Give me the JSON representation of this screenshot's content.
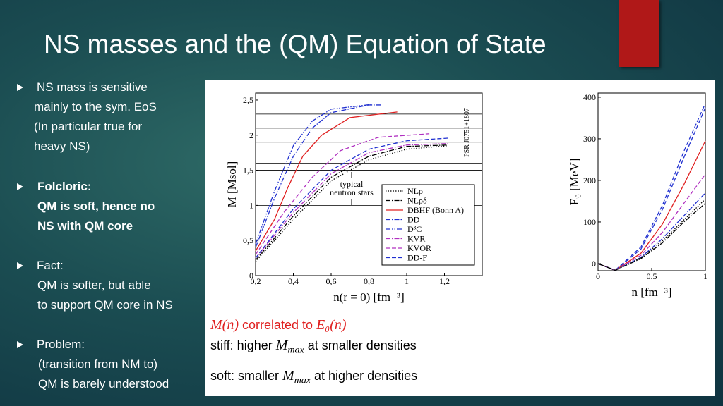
{
  "slide": {
    "title": "NS masses and the (QM) Equation of State",
    "bullets": [
      {
        "lines": [
          "NS mass is sensitive",
          "mainly to the sym. EoS",
          "(In particular true for",
          "heavy NS)"
        ]
      },
      {
        "lines": [
          "Folcloric:",
          "QM is soft, hence no",
          "NS with QM core"
        ]
      },
      {
        "lines": [
          "Fact:",
          [
            "QM is soft",
            "er",
            ", but able"
          ],
          "to support QM core in NS"
        ]
      },
      {
        "lines": [
          "Problem:",
          "(transition from NM to)",
          "QM is barely understood"
        ]
      }
    ],
    "footer": [
      {
        "math": "M(n)",
        "text": " correlated to ",
        "math2": "E₀(n)"
      },
      {
        "before": "stiff: higher ",
        "math": "M",
        "sub": "max",
        "after": " at smaller densities"
      },
      {
        "before": "soft: smaller ",
        "math": "M",
        "sub": "max",
        "after": " at higher densities"
      }
    ]
  },
  "chart_data": [
    {
      "type": "line",
      "x_label": "n(r = 0)  [fm⁻³]",
      "y_label": "M  [Msol]",
      "xlim": [
        0.2,
        1.4
      ],
      "ylim": [
        0,
        2.6
      ],
      "xticks": [
        {
          "value": 0.2,
          "label": "0,2"
        },
        {
          "value": 0.4,
          "label": "0,4"
        },
        {
          "value": 0.6,
          "label": "0,6"
        },
        {
          "value": 0.8,
          "label": "0,8"
        },
        {
          "value": 1,
          "label": "1"
        },
        {
          "value": 1.2,
          "label": "1,2"
        }
      ],
      "yticks": [
        0,
        {
          "value": 0.5,
          "label": "0,5"
        },
        1,
        {
          "value": 1.5,
          "label": "1,5"
        },
        2,
        {
          "value": 2.5,
          "label": "2,5"
        }
      ],
      "reference_lines": [
        1,
        1.5,
        1.6,
        1.9,
        2.1,
        2.3
      ],
      "annotations": [
        "typical",
        "neutron stars",
        "PSR J0751+1807"
      ],
      "legend": "lower right",
      "series": [
        {
          "name": "NLρ",
          "color": "#000000",
          "style": "dotted",
          "x": [
            0.2,
            0.4,
            0.6,
            0.8,
            1.0,
            1.22
          ],
          "values": [
            0.2,
            0.8,
            1.35,
            1.65,
            1.8,
            1.85
          ]
        },
        {
          "name": "NLρδ",
          "color": "#000000",
          "style": "dashdot",
          "x": [
            0.2,
            0.4,
            0.6,
            0.8,
            1.0,
            1.22
          ],
          "values": [
            0.22,
            0.85,
            1.4,
            1.7,
            1.84,
            1.86
          ]
        },
        {
          "name": "DBHF (Bonn A)",
          "color": "#e02020",
          "style": "solid",
          "x": [
            0.2,
            0.3,
            0.37,
            0.45,
            0.55,
            0.7,
            0.95
          ],
          "values": [
            0.35,
            0.8,
            1.25,
            1.7,
            2.0,
            2.25,
            2.33
          ]
        },
        {
          "name": "DD",
          "color": "#2030d0",
          "style": "dashdot",
          "x": [
            0.2,
            0.3,
            0.4,
            0.5,
            0.6,
            0.8,
            0.87
          ],
          "values": [
            0.4,
            1.1,
            1.7,
            2.1,
            2.32,
            2.43,
            2.43
          ]
        },
        {
          "name": "D³C",
          "color": "#2030d0",
          "style": "dashdotdot",
          "x": [
            0.2,
            0.3,
            0.4,
            0.5,
            0.6,
            0.82
          ],
          "values": [
            0.45,
            1.2,
            1.85,
            2.2,
            2.37,
            2.44
          ]
        },
        {
          "name": "KVR",
          "color": "#b030c0",
          "style": "dashdot",
          "x": [
            0.2,
            0.4,
            0.6,
            0.8,
            1.0,
            1.22
          ],
          "values": [
            0.25,
            0.9,
            1.45,
            1.75,
            1.86,
            1.88
          ]
        },
        {
          "name": "KVOR",
          "color": "#b030c0",
          "style": "dashed",
          "x": [
            0.2,
            0.35,
            0.5,
            0.65,
            0.85,
            1.12
          ],
          "values": [
            0.3,
            0.9,
            1.4,
            1.78,
            1.97,
            2.02
          ]
        },
        {
          "name": "DD-F",
          "color": "#2030d0",
          "style": "dashed",
          "x": [
            0.2,
            0.4,
            0.6,
            0.8,
            1.0,
            1.23
          ],
          "values": [
            0.25,
            0.95,
            1.5,
            1.8,
            1.92,
            1.96
          ]
        }
      ]
    },
    {
      "type": "line",
      "x_label": "n  [fm⁻³]",
      "y_label": "E₀  [MeV]",
      "xlim": [
        0,
        1
      ],
      "ylim": [
        -17,
        410
      ],
      "xticks": [
        0,
        0.5,
        1
      ],
      "yticks": [
        0,
        100,
        200,
        300,
        400
      ],
      "series": [
        {
          "color": "#2030d0",
          "style": "dashed",
          "x": [
            0,
            0.16,
            0.4,
            0.6,
            0.8,
            1.0
          ],
          "values": [
            0,
            -16,
            40,
            140,
            270,
            385
          ]
        },
        {
          "color": "#2030d0",
          "style": "dashed",
          "x": [
            0,
            0.16,
            0.4,
            0.6,
            0.8,
            1.0
          ],
          "values": [
            0,
            -16,
            35,
            130,
            255,
            375
          ]
        },
        {
          "color": "#e02020",
          "style": "solid",
          "x": [
            0,
            0.16,
            0.4,
            0.6,
            0.8,
            1.0
          ],
          "values": [
            0,
            -16,
            25,
            95,
            190,
            295
          ]
        },
        {
          "color": "#b030c0",
          "style": "dashed",
          "x": [
            0,
            0.16,
            0.4,
            0.6,
            0.8,
            1.0
          ],
          "values": [
            0,
            -16,
            20,
            75,
            145,
            215
          ]
        },
        {
          "color": "#2030d0",
          "style": "dashdot",
          "x": [
            0,
            0.16,
            0.4,
            0.6,
            0.8,
            1.0
          ],
          "values": [
            0,
            -16,
            15,
            60,
            115,
            170
          ]
        },
        {
          "color": "#000000",
          "style": "dashdot",
          "x": [
            0,
            0.16,
            0.4,
            0.6,
            0.8,
            1.0
          ],
          "values": [
            0,
            -16,
            12,
            50,
            100,
            145
          ]
        },
        {
          "color": "#000000",
          "style": "dotted",
          "x": [
            0,
            0.16,
            0.4,
            0.6,
            0.8,
            1.0
          ],
          "values": [
            0,
            -16,
            14,
            55,
            105,
            155
          ]
        }
      ]
    }
  ]
}
